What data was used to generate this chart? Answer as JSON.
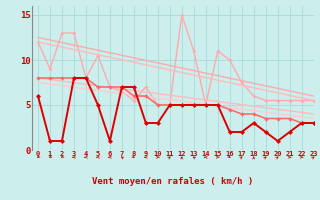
{
  "xlabel": "Vent moyen/en rafales ( km/h )",
  "bg_color": "#cceeed",
  "grid_color": "#aadddd",
  "xlim": [
    -0.5,
    23
  ],
  "ylim": [
    0,
    16
  ],
  "yticks": [
    0,
    5,
    10,
    15
  ],
  "xticks": [
    0,
    1,
    2,
    3,
    4,
    5,
    6,
    7,
    8,
    9,
    10,
    11,
    12,
    13,
    14,
    15,
    16,
    17,
    18,
    19,
    20,
    21,
    22,
    23
  ],
  "lines": [
    {
      "comment": "light pink top zigzag line (rafales high)",
      "x": [
        0,
        1,
        2,
        3,
        4,
        5,
        6,
        7,
        8,
        9,
        10,
        11,
        12,
        13,
        14,
        15,
        16,
        17,
        18,
        19,
        20,
        21,
        22,
        23
      ],
      "y": [
        12,
        9,
        13,
        13,
        8,
        10.5,
        7,
        6.5,
        5.5,
        7,
        5,
        5,
        15,
        11,
        5,
        11,
        10,
        7.5,
        6,
        5.5,
        5.5,
        5.5,
        5.5,
        5.5
      ],
      "color": "#ffaaaa",
      "lw": 1.0,
      "marker": "D",
      "ms": 2.0,
      "zorder": 2
    },
    {
      "comment": "diagonal line 1 - top straight declining pink",
      "x": [
        0,
        23
      ],
      "y": [
        12.5,
        6.0
      ],
      "color": "#ffaaaa",
      "lw": 1.0,
      "marker": null,
      "ms": 0,
      "zorder": 2
    },
    {
      "comment": "diagonal line 2 - slightly below",
      "x": [
        0,
        23
      ],
      "y": [
        12.0,
        5.5
      ],
      "color": "#ffbbbb",
      "lw": 1.0,
      "marker": null,
      "ms": 0,
      "zorder": 2
    },
    {
      "comment": "diagonal line 3 - medium pink",
      "x": [
        0,
        23
      ],
      "y": [
        8.0,
        4.0
      ],
      "color": "#ffbbbb",
      "lw": 1.0,
      "marker": null,
      "ms": 0,
      "zorder": 2
    },
    {
      "comment": "diagonal line 4 - lower pink",
      "x": [
        0,
        23
      ],
      "y": [
        7.5,
        3.5
      ],
      "color": "#ffcccc",
      "lw": 1.0,
      "marker": null,
      "ms": 0,
      "zorder": 2
    },
    {
      "comment": "medium red zigzag (moyen line)",
      "x": [
        0,
        1,
        2,
        3,
        4,
        5,
        6,
        7,
        8,
        9,
        10,
        11,
        12,
        13,
        14,
        15,
        16,
        17,
        18,
        19,
        20,
        21,
        22,
        23
      ],
      "y": [
        8,
        8,
        8,
        8,
        8,
        7,
        7,
        7,
        6,
        6,
        5,
        5,
        5,
        5,
        5,
        5,
        4.5,
        4,
        4,
        3.5,
        3.5,
        3.5,
        3,
        3
      ],
      "color": "#ff6666",
      "lw": 1.1,
      "marker": "D",
      "ms": 2.2,
      "zorder": 3
    },
    {
      "comment": "dark red zigzag lower (vent moyen)",
      "x": [
        0,
        1,
        2,
        3,
        4,
        5,
        6,
        7,
        8,
        9,
        10,
        11,
        12,
        13,
        14,
        15,
        16,
        17,
        18,
        19,
        20,
        21,
        22,
        23
      ],
      "y": [
        6,
        1,
        1,
        8,
        8,
        5,
        1,
        7,
        7,
        3,
        3,
        5,
        5,
        5,
        5,
        5,
        2,
        2,
        3,
        2,
        1,
        2,
        3,
        3
      ],
      "color": "#dd0000",
      "lw": 1.4,
      "marker": "D",
      "ms": 2.5,
      "zorder": 4
    }
  ],
  "arrow_angles": [
    225,
    225,
    225,
    270,
    270,
    270,
    270,
    315,
    135,
    270,
    90,
    45,
    0,
    315,
    270,
    90,
    135,
    45,
    0,
    45,
    45,
    90,
    90,
    45
  ],
  "left_spine_color": "#888888"
}
